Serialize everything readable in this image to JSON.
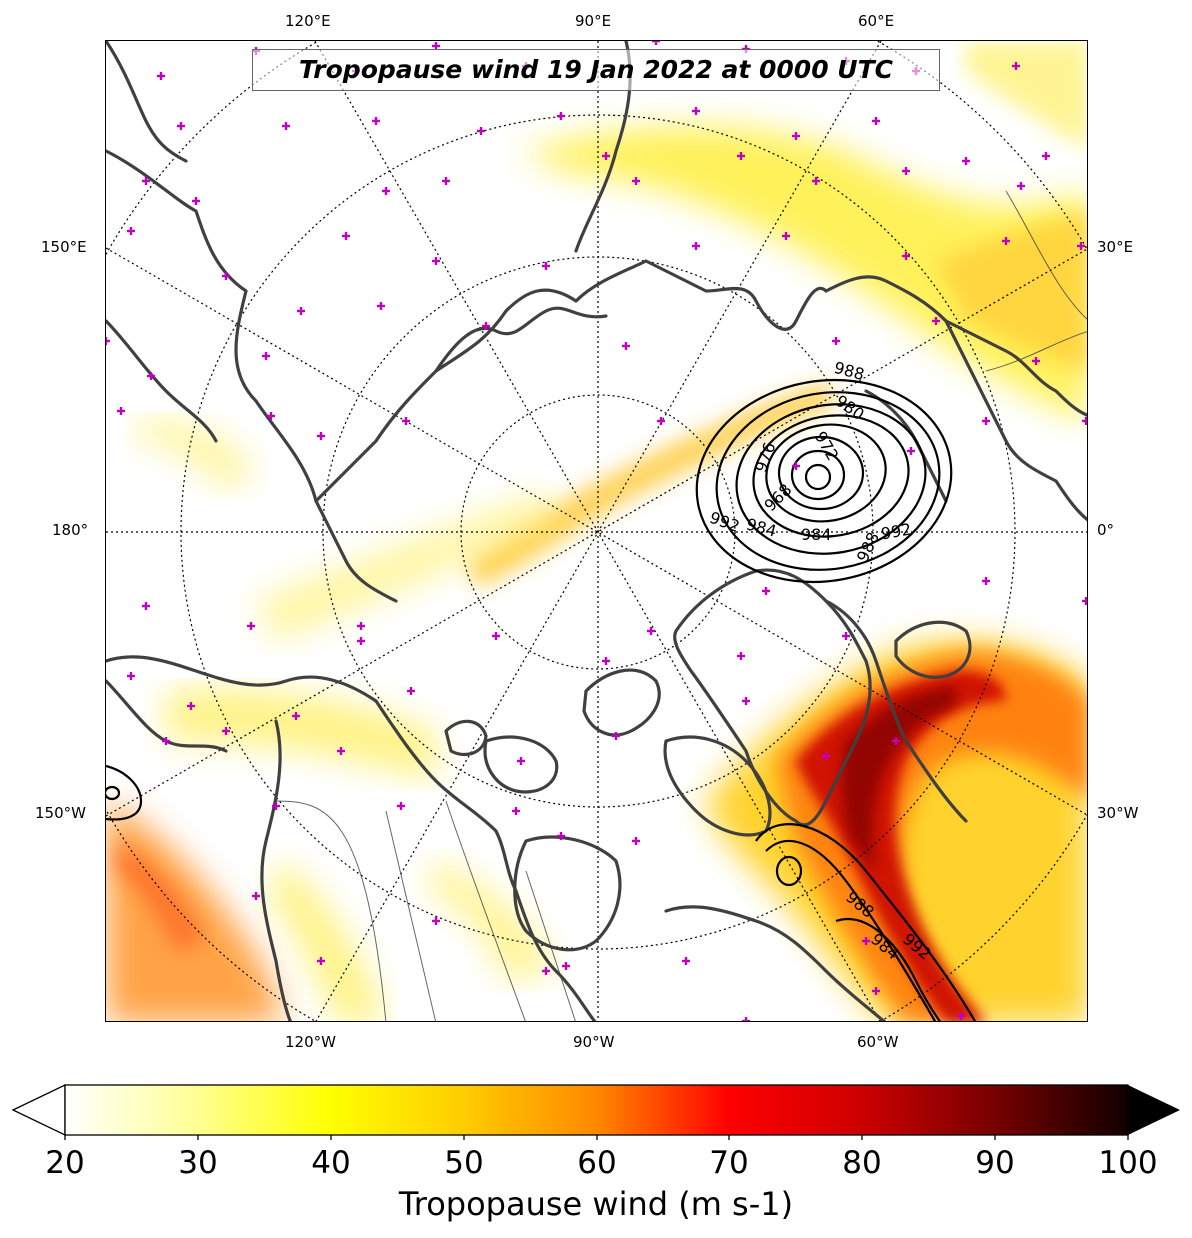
{
  "map": {
    "title": "Tropopause wind 19 Jan 2022 at 0000 UTC",
    "projection": "north-polar-stereographic",
    "coastline_color": "#404040",
    "graticule_style": "dotted",
    "station_marker_color": "#c000c0",
    "top_ticks": [
      "120°E",
      "90°E",
      "60°E"
    ],
    "bottom_ticks": [
      "120°W",
      "90°W",
      "60°W"
    ],
    "left_ticks": [
      "150°E",
      "180°",
      "150°W"
    ],
    "right_ticks": [
      "30°E",
      "0°",
      "30°W"
    ],
    "contour_labels": [
      "988",
      "980",
      "976",
      "972",
      "968",
      "984",
      "992",
      "984",
      "988",
      "992",
      "988",
      "984",
      "992"
    ],
    "pressure_contour_levels": [
      964,
      968,
      972,
      976,
      980,
      984,
      988,
      992
    ]
  },
  "colorbar": {
    "label": "Tropopause wind (m s-1)",
    "ticks": [
      "20",
      "30",
      "40",
      "50",
      "60",
      "70",
      "80",
      "90",
      "100"
    ],
    "min": 20,
    "max": 100,
    "extend": "both",
    "colormap": "hot_r",
    "colors": [
      "#ffffff",
      "#ffff99",
      "#ffff00",
      "#ffcc00",
      "#ff8800",
      "#ff0000",
      "#cc0000",
      "#770000",
      "#000000"
    ]
  }
}
